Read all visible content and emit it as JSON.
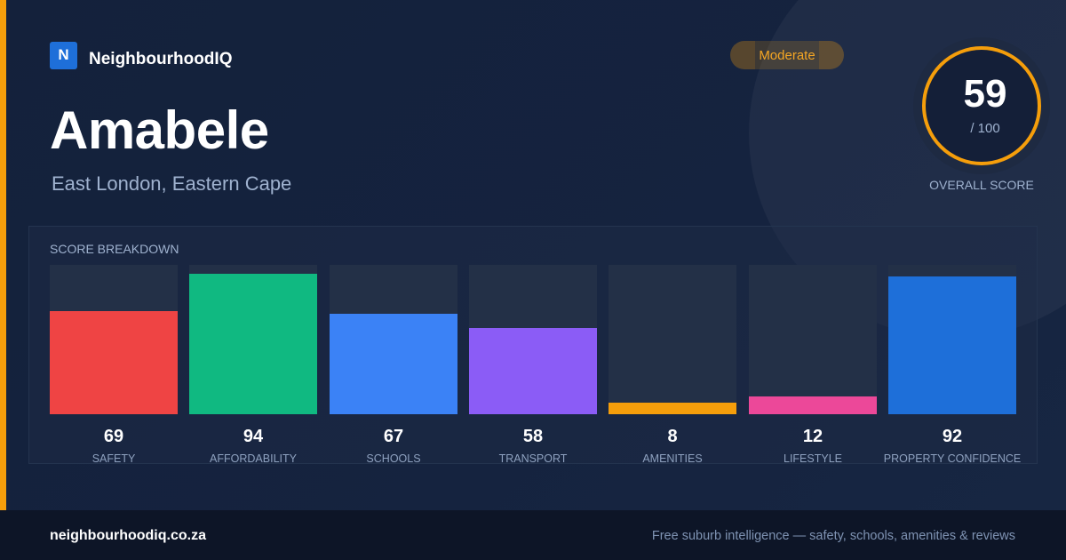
{
  "brand": {
    "logo_letter": "N",
    "name": "NeighbourhoodIQ"
  },
  "colors": {
    "accent": "#f59e0b",
    "background": "#14213b",
    "brand": "#1e6fd9"
  },
  "rating_label": "Moderate",
  "suburb": "Amabele",
  "location": "East London, Eastern Cape",
  "overall": {
    "score": "59",
    "max_label": "/ 100",
    "caption": "OVERALL SCORE"
  },
  "breakdown_title": "SCORE BREAKDOWN",
  "chart_data": {
    "type": "bar",
    "title": "SCORE BREAKDOWN",
    "categories": [
      "SAFETY",
      "AFFORDABILITY",
      "SCHOOLS",
      "TRANSPORT",
      "AMENITIES",
      "LIFESTYLE",
      "PROPERTY CONFIDENCE"
    ],
    "values": [
      69,
      94,
      67,
      58,
      8,
      12,
      92
    ],
    "colors": [
      "#ef4444",
      "#10b981",
      "#3b82f6",
      "#8b5cf6",
      "#f59e0b",
      "#ec4899",
      "#1e6fd9"
    ],
    "ylim": [
      0,
      100
    ],
    "grid": false,
    "legend": "none"
  },
  "footer": {
    "url": "neighbourhoodiq.co.za",
    "tagline": "Free suburb intelligence — safety, schools, amenities & reviews"
  }
}
